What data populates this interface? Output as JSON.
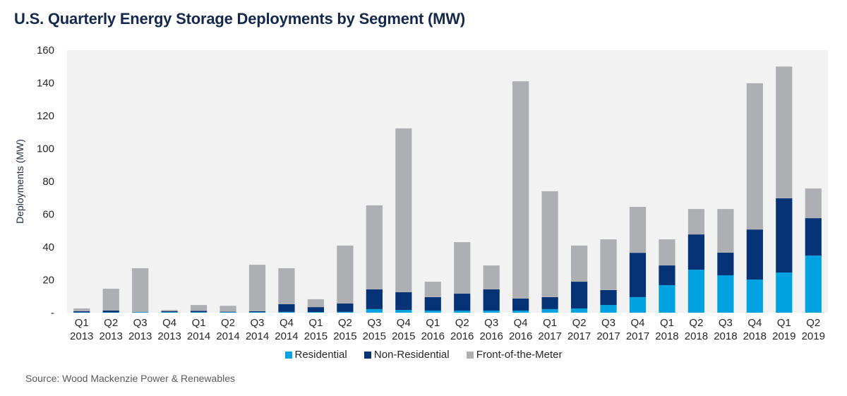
{
  "chart_data": {
    "type": "bar",
    "stacked": true,
    "title": "U.S. Quarterly Energy Storage Deployments by Segment (MW)",
    "xlabel": "",
    "ylabel": "Deployments (MW)",
    "ylim": [
      0,
      160
    ],
    "yticks": [
      0,
      20,
      40,
      60,
      80,
      100,
      120,
      140,
      160
    ],
    "ytick_labels": [
      "-",
      "20",
      "40",
      "60",
      "80",
      "100",
      "120",
      "140",
      "160"
    ],
    "grid": false,
    "legend_position": "bottom",
    "categories": [
      [
        "Q1",
        "2013"
      ],
      [
        "Q2",
        "2013"
      ],
      [
        "Q3",
        "2013"
      ],
      [
        "Q4",
        "2013"
      ],
      [
        "Q1",
        "2014"
      ],
      [
        "Q2",
        "2014"
      ],
      [
        "Q3",
        "2014"
      ],
      [
        "Q4",
        "2014"
      ],
      [
        "Q1",
        "2015"
      ],
      [
        "Q2",
        "2015"
      ],
      [
        "Q3",
        "2015"
      ],
      [
        "Q4",
        "2015"
      ],
      [
        "Q1",
        "2016"
      ],
      [
        "Q2",
        "2016"
      ],
      [
        "Q3",
        "2016"
      ],
      [
        "Q4",
        "2016"
      ],
      [
        "Q1",
        "2017"
      ],
      [
        "Q2",
        "2017"
      ],
      [
        "Q3",
        "2017"
      ],
      [
        "Q4",
        "2017"
      ],
      [
        "Q1",
        "2018"
      ],
      [
        "Q2",
        "2018"
      ],
      [
        "Q3",
        "2018"
      ],
      [
        "Q4",
        "2018"
      ],
      [
        "Q1",
        "2019"
      ],
      [
        "Q2",
        "2019"
      ]
    ],
    "series": [
      {
        "name": "Residential",
        "color": "#00a3e0",
        "values": [
          0.2,
          0.2,
          0.3,
          0.3,
          0.3,
          0.3,
          0.3,
          0.5,
          0.4,
          0.5,
          2.2,
          1.7,
          1.3,
          1.3,
          1.3,
          1.3,
          2.2,
          2.6,
          4.7,
          9.5,
          16.8,
          26.2,
          22.8,
          20.2,
          24.5,
          34.8
        ]
      },
      {
        "name": "Non-Residential",
        "color": "#063375",
        "values": [
          0.7,
          1.1,
          0.1,
          0.6,
          0.8,
          0.3,
          0.6,
          4.7,
          3.0,
          5.1,
          12.0,
          10.8,
          8.2,
          10.3,
          12.9,
          7.3,
          7.3,
          16.3,
          9.1,
          27.0,
          12.0,
          21.5,
          13.8,
          30.5,
          45.2,
          22.8
        ]
      },
      {
        "name": "Front-of-the-Meter",
        "color": "#adafb2",
        "values": [
          1.7,
          13.3,
          26.7,
          0.8,
          3.6,
          3.6,
          28.3,
          21.9,
          4.8,
          35.3,
          51.2,
          99.8,
          9.4,
          31.4,
          14.6,
          132.4,
          64.5,
          22.0,
          30.9,
          28.0,
          15.9,
          15.5,
          26.6,
          89.1,
          80.3,
          18.1
        ]
      }
    ],
    "plot_background": "#f2f2f2"
  },
  "legend": {
    "items": [
      {
        "label": "Residential",
        "color": "#00a3e0"
      },
      {
        "label": "Non-Residential",
        "color": "#063375"
      },
      {
        "label": "Front-of-the-Meter",
        "color": "#adafb2"
      }
    ]
  },
  "source": "Source: Wood Mackenzie Power & Renewables"
}
